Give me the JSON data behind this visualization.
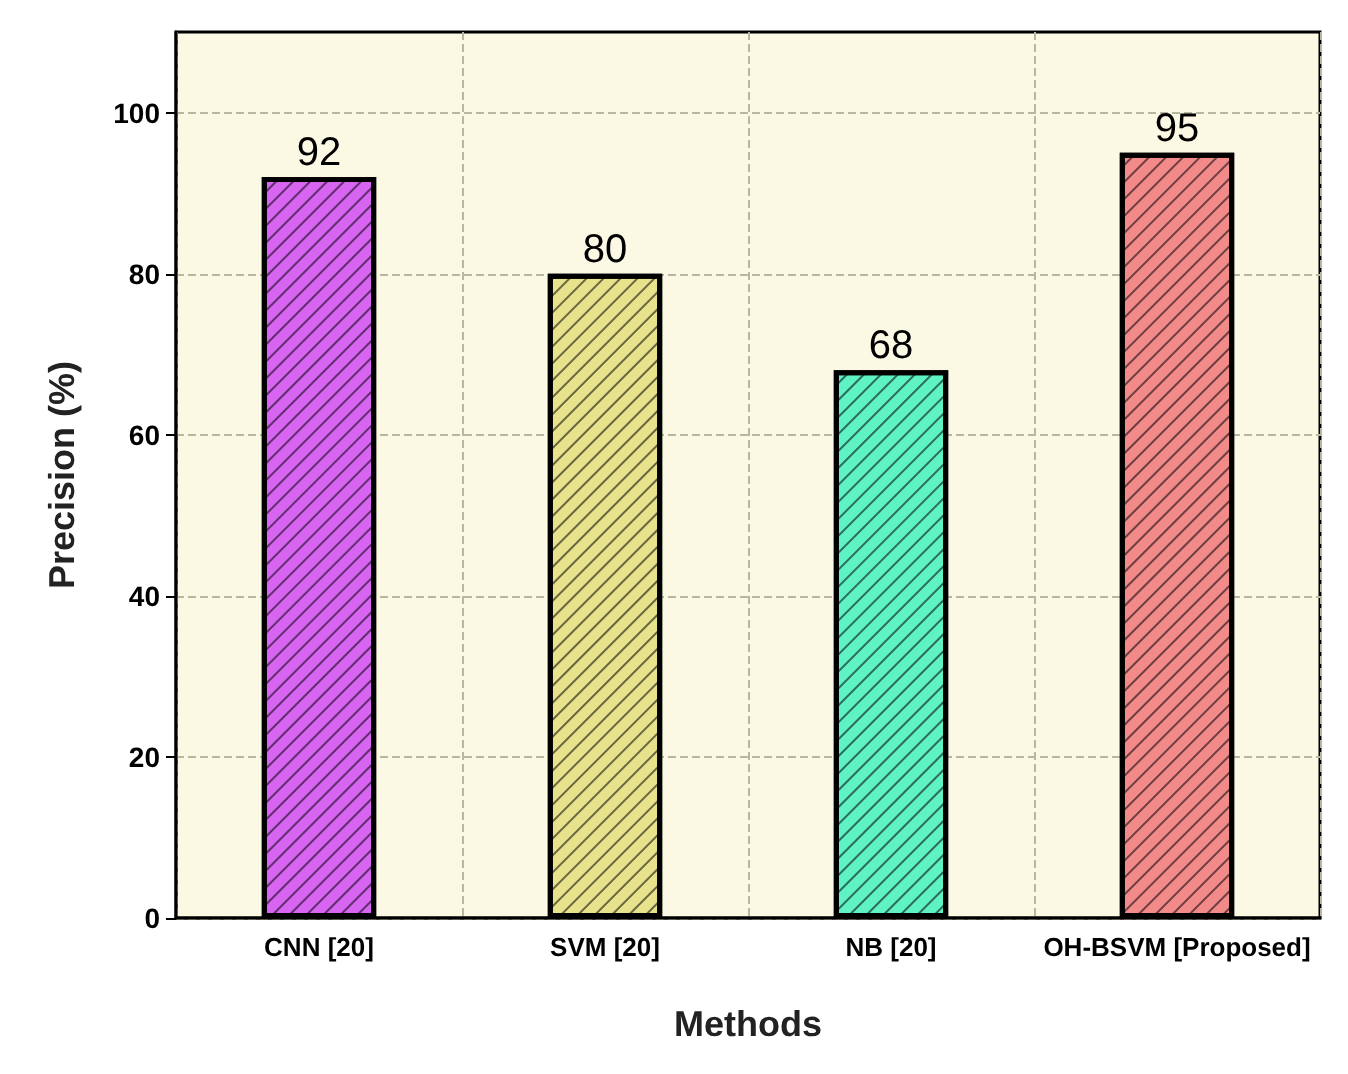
{
  "chart_data": {
    "type": "bar",
    "xlabel": "Methods",
    "ylabel": "Precision (%)",
    "categories": [
      "CNN [20]",
      "SVM [20]",
      "NB [20]",
      "OH-BSVM [Proposed]"
    ],
    "values": [
      92,
      80,
      68,
      95
    ],
    "colors": [
      "#d865f2",
      "#e8e28c",
      "#5ff2c4",
      "#f28a8a"
    ],
    "ylim": [
      0,
      110
    ],
    "yticks": [
      0,
      20,
      40,
      60,
      80,
      100
    ],
    "grid": true,
    "data_labels": true
  }
}
